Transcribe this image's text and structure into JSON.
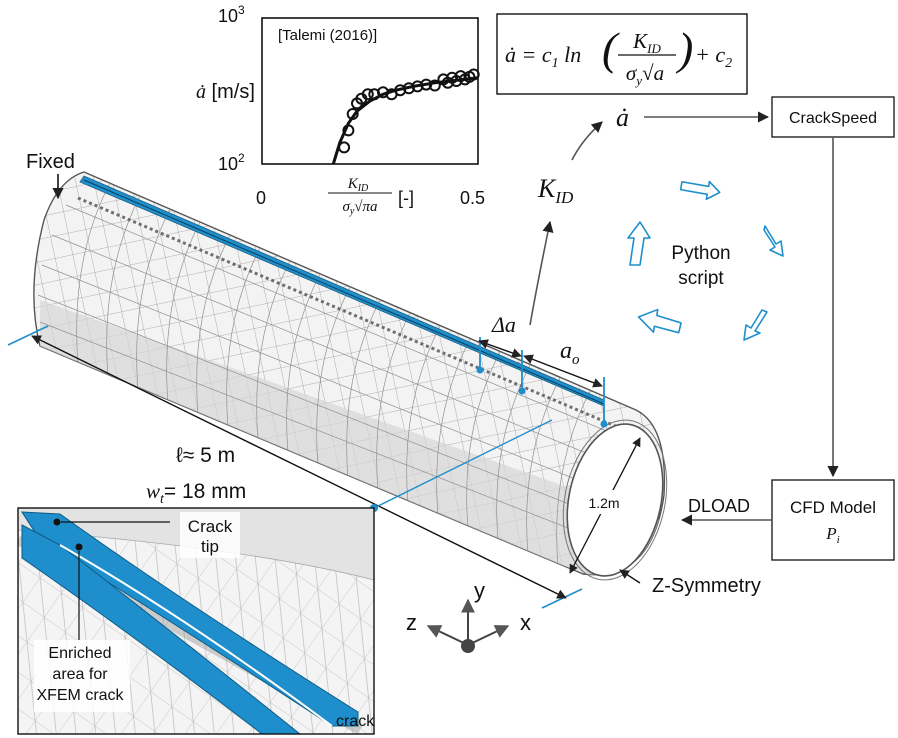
{
  "labels": {
    "fixed": "Fixed",
    "length": "ℓ≈ 5 m",
    "thickness_w": "w",
    "thickness_sub": "t",
    "thickness_val": "= 18 mm",
    "diameter": "1.2m",
    "z_symmetry": "Z-Symmetry",
    "delta_a": "Δa",
    "a_o": "a",
    "a_o_sub": "o",
    "k_id": "K",
    "k_id_sub": "ID",
    "a_dot": "ȧ",
    "python_line1": "Python",
    "python_line2": "script",
    "dload": "DLOAD"
  },
  "axes": {
    "y": "y",
    "z": "z",
    "x": "x"
  },
  "boxes": {
    "crackspeed": "CrackSpeed",
    "cfd_line1": "CFD Model",
    "cfd_line2": "P",
    "cfd_sub": "i"
  },
  "formula": {
    "lhs": "ȧ = c",
    "c1_sub": "1",
    "ln": "ln",
    "num": "K",
    "num_sub": "ID",
    "den": "σ",
    "den_sub": "y",
    "den_sqrt": "a",
    "plus": "+ c",
    "c2_sub": "2"
  },
  "inset": {
    "crack_tip_1": "Crack",
    "crack_tip_2": "tip",
    "enriched_1": "Enriched",
    "enriched_2": "area for",
    "enriched_3": "XFEM crack",
    "crack": "crack"
  },
  "chart_data": {
    "type": "scatter",
    "title": "[Talemi (2016)]",
    "ylabel": "ȧ [m/s]",
    "xlabel": "K_ID / (σ_y √(πa)) [-]",
    "xlim": [
      0,
      0.5
    ],
    "ylim": [
      100,
      1000
    ],
    "yscale": "log",
    "x_ticks": [
      "0",
      "0.5"
    ],
    "y_ticks": [
      "10",
      "10"
    ],
    "y_tick_exponents": [
      "3",
      "2"
    ],
    "points": [
      [
        0.19,
        130
      ],
      [
        0.2,
        170
      ],
      [
        0.21,
        220
      ],
      [
        0.22,
        260
      ],
      [
        0.23,
        280
      ],
      [
        0.245,
        300
      ],
      [
        0.26,
        300
      ],
      [
        0.28,
        310
      ],
      [
        0.3,
        300
      ],
      [
        0.32,
        320
      ],
      [
        0.34,
        330
      ],
      [
        0.36,
        340
      ],
      [
        0.38,
        350
      ],
      [
        0.4,
        345
      ],
      [
        0.42,
        380
      ],
      [
        0.43,
        360
      ],
      [
        0.44,
        390
      ],
      [
        0.45,
        370
      ],
      [
        0.46,
        400
      ],
      [
        0.47,
        380
      ],
      [
        0.48,
        395
      ],
      [
        0.49,
        410
      ]
    ],
    "fit": [
      [
        0.165,
        100
      ],
      [
        0.18,
        140
      ],
      [
        0.2,
        190
      ],
      [
        0.22,
        230
      ],
      [
        0.25,
        270
      ],
      [
        0.28,
        300
      ],
      [
        0.31,
        320
      ],
      [
        0.35,
        340
      ],
      [
        0.4,
        360
      ],
      [
        0.45,
        375
      ],
      [
        0.5,
        390
      ]
    ]
  }
}
